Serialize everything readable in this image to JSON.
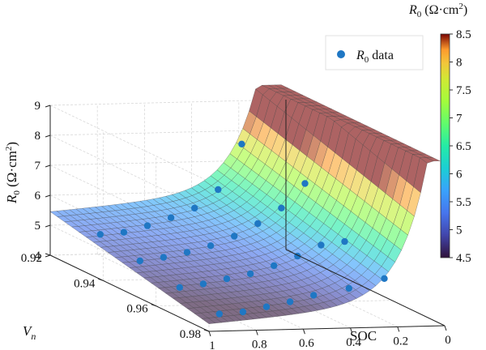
{
  "chart_data": {
    "type": "surface3d",
    "title": "",
    "zlabel_main": "R",
    "zlabel_sub": "0",
    "zlabel_unit_text": " (Ω·cm",
    "zlabel_unit_sup": "2",
    "zlabel_unit_close": ")",
    "xlabel": "SOC",
    "ylabel_main": "V",
    "ylabel_sub": "n",
    "x_ticks": [
      "1",
      "0.8",
      "0.6",
      "0.4",
      "0.2",
      "0"
    ],
    "x_tick_values": [
      1,
      0.8,
      0.6,
      0.4,
      0.2,
      0
    ],
    "y_ticks": [
      "0.92",
      "0.94",
      "0.96",
      "0.98"
    ],
    "y_tick_values": [
      0.92,
      0.94,
      0.96,
      0.98
    ],
    "z_ticks": [
      "4",
      "5",
      "6",
      "7",
      "8",
      "9"
    ],
    "z_tick_values": [
      4,
      5,
      6,
      7,
      8,
      9
    ],
    "xlim": [
      0,
      1
    ],
    "ylim": [
      0.92,
      0.98
    ],
    "zlim": [
      4,
      9
    ],
    "grid": true,
    "legend": {
      "position": "top-right",
      "marker_label_main": "R",
      "marker_label_sub": "0",
      "marker_label_rest": " data"
    },
    "colorbar": {
      "title_main": "R",
      "title_sub": "0",
      "title_unit_text": " (Ω·cm",
      "title_unit_sup": "2",
      "title_unit_close": ")",
      "ticks": [
        "4.5",
        "5",
        "5.5",
        "6",
        "6.5",
        "7",
        "7.5",
        "8",
        "8.5"
      ],
      "tick_values": [
        4.5,
        5,
        5.5,
        6,
        6.5,
        7,
        7.5,
        8,
        8.5
      ],
      "range": [
        4.5,
        8.5
      ],
      "colormap": "turbo"
    },
    "scatter_series": {
      "name": "R0 data",
      "color": "#1f77c4",
      "points": [
        {
          "soc": 0.9,
          "vn": 0.93,
          "r0": 5.1
        },
        {
          "soc": 0.8,
          "vn": 0.93,
          "r0": 5.15
        },
        {
          "soc": 0.7,
          "vn": 0.93,
          "r0": 5.35
        },
        {
          "soc": 0.6,
          "vn": 0.93,
          "r0": 5.6
        },
        {
          "soc": 0.5,
          "vn": 0.93,
          "r0": 5.9
        },
        {
          "soc": 0.4,
          "vn": 0.93,
          "r0": 6.5
        },
        {
          "soc": 0.3,
          "vn": 0.93,
          "r0": 8.0
        },
        {
          "soc": 0.9,
          "vn": 0.945,
          "r0": 4.85
        },
        {
          "soc": 0.8,
          "vn": 0.945,
          "r0": 4.95
        },
        {
          "soc": 0.7,
          "vn": 0.945,
          "r0": 5.1
        },
        {
          "soc": 0.6,
          "vn": 0.945,
          "r0": 5.3
        },
        {
          "soc": 0.5,
          "vn": 0.945,
          "r0": 5.6
        },
        {
          "soc": 0.4,
          "vn": 0.945,
          "r0": 6.0
        },
        {
          "soc": 0.3,
          "vn": 0.945,
          "r0": 6.5
        },
        {
          "soc": 0.2,
          "vn": 0.945,
          "r0": 7.3
        },
        {
          "soc": 0.9,
          "vn": 0.96,
          "r0": 4.6
        },
        {
          "soc": 0.8,
          "vn": 0.96,
          "r0": 4.7
        },
        {
          "soc": 0.7,
          "vn": 0.96,
          "r0": 4.85
        },
        {
          "soc": 0.6,
          "vn": 0.96,
          "r0": 5.0
        },
        {
          "soc": 0.5,
          "vn": 0.96,
          "r0": 5.25
        },
        {
          "soc": 0.4,
          "vn": 0.96,
          "r0": 5.55
        },
        {
          "soc": 0.3,
          "vn": 0.96,
          "r0": 5.9
        },
        {
          "soc": 0.2,
          "vn": 0.96,
          "r0": 6.0
        },
        {
          "soc": 0.9,
          "vn": 0.975,
          "r0": 4.35
        },
        {
          "soc": 0.8,
          "vn": 0.975,
          "r0": 4.4
        },
        {
          "soc": 0.7,
          "vn": 0.975,
          "r0": 4.55
        },
        {
          "soc": 0.6,
          "vn": 0.975,
          "r0": 4.7
        },
        {
          "soc": 0.5,
          "vn": 0.975,
          "r0": 4.9
        },
        {
          "soc": 0.35,
          "vn": 0.975,
          "r0": 5.1
        },
        {
          "soc": 0.2,
          "vn": 0.975,
          "r0": 5.4
        }
      ]
    }
  }
}
